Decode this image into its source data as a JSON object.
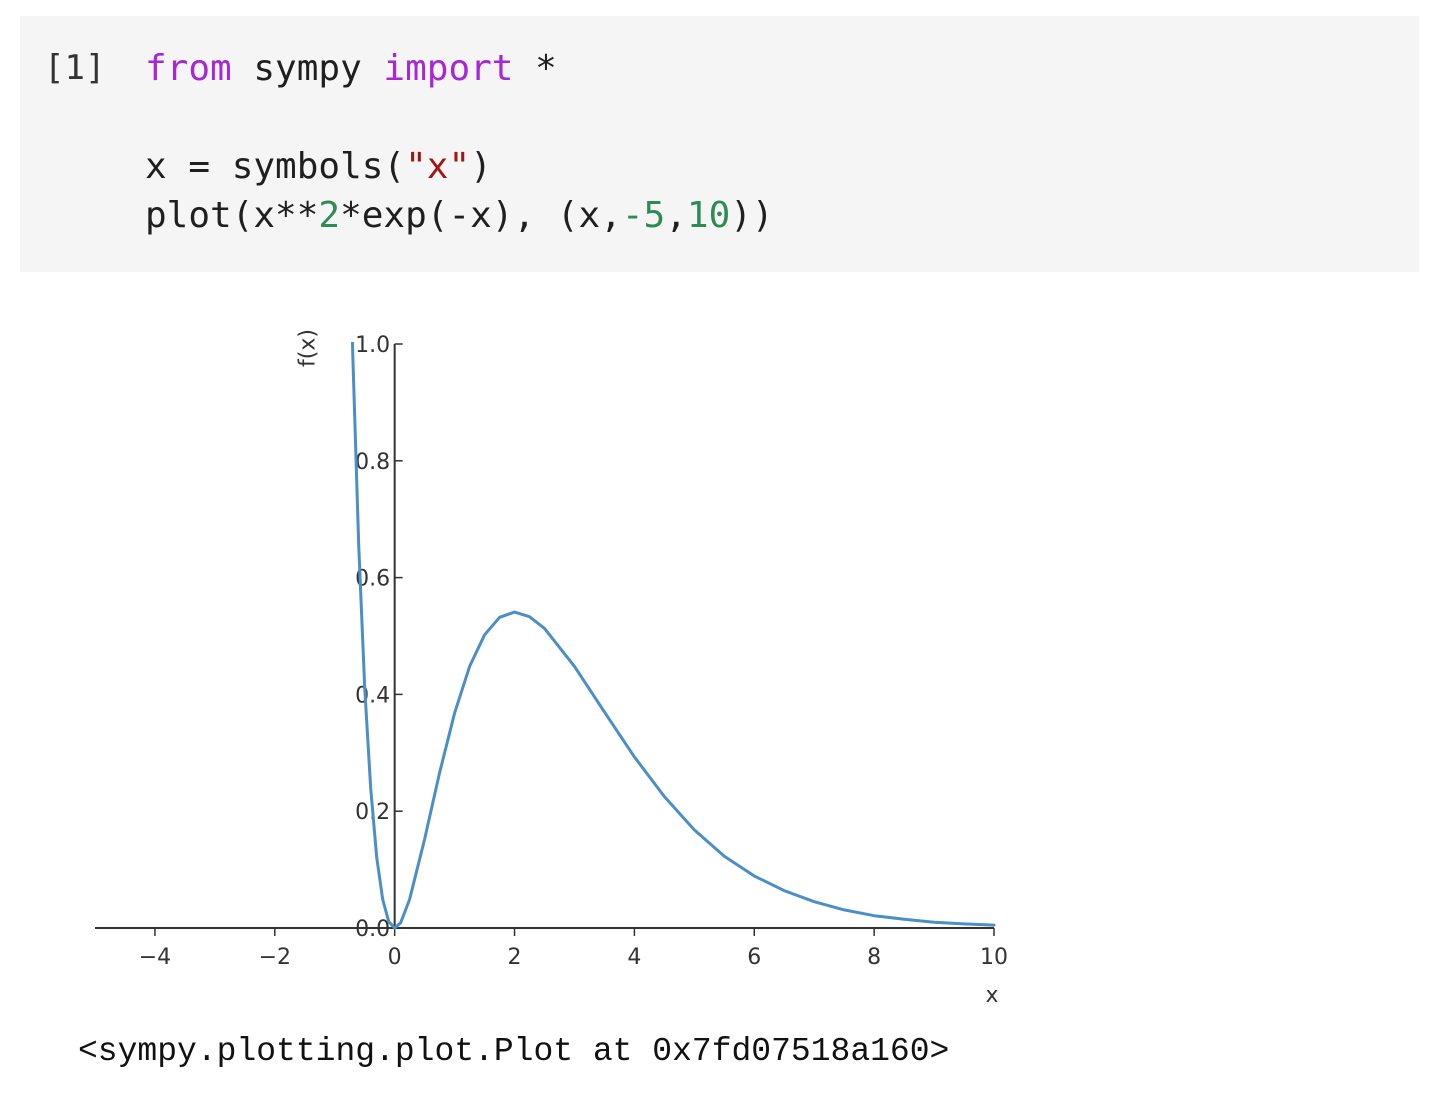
{
  "cell": {
    "prompt": "[1]",
    "code_lines": [
      [
        {
          "t": "from",
          "c": "kw"
        },
        {
          "t": " sympy ",
          "c": "op"
        },
        {
          "t": "import",
          "c": "kw"
        },
        {
          "t": " *",
          "c": "op"
        }
      ],
      [],
      [
        {
          "t": "x = symbols(",
          "c": "op"
        },
        {
          "t": "\"x\"",
          "c": "str"
        },
        {
          "t": ")",
          "c": "op"
        }
      ],
      [
        {
          "t": "plot(x**",
          "c": "op"
        },
        {
          "t": "2",
          "c": "num"
        },
        {
          "t": "*exp(-x), (x,",
          "c": "op"
        },
        {
          "t": "-5",
          "c": "num"
        },
        {
          "t": ",",
          "c": "op"
        },
        {
          "t": "10",
          "c": "num"
        },
        {
          "t": "))",
          "c": "op"
        }
      ]
    ]
  },
  "output": {
    "repr": "<sympy.plotting.plot.Plot at 0x7fd07518a160>"
  },
  "chart_data": {
    "type": "line",
    "title": "",
    "xlabel": "x",
    "ylabel": "f(x)",
    "xlim": [
      -5,
      10
    ],
    "ylim": [
      0,
      1.0
    ],
    "grid": false,
    "x_ticks": [
      -4,
      -2,
      0,
      2,
      4,
      6,
      8,
      10
    ],
    "x_tick_labels": [
      "−4",
      "−2",
      "0",
      "2",
      "4",
      "6",
      "8",
      "10"
    ],
    "y_ticks": [
      0.0,
      0.2,
      0.4,
      0.6,
      0.8,
      1.0
    ],
    "y_tick_labels": [
      "0.0",
      "0.2",
      "0.4",
      "0.6",
      "0.8",
      "1.0"
    ],
    "series": [
      {
        "expression": "x**2*exp(-x)",
        "color": "#4c8ec6",
        "x": [
          -0.75,
          -0.7,
          -0.6,
          -0.5,
          -0.4,
          -0.3,
          -0.2,
          -0.1,
          0,
          0.1,
          0.25,
          0.5,
          0.75,
          1.0,
          1.25,
          1.5,
          1.75,
          2.0,
          2.25,
          2.5,
          3.0,
          3.5,
          4.0,
          4.5,
          5.0,
          5.5,
          6.0,
          6.5,
          7.0,
          7.5,
          8.0,
          8.5,
          9.0,
          9.5,
          10.0
        ],
        "y": [
          1.191,
          0.986,
          0.656,
          0.412,
          0.239,
          0.121,
          0.049,
          0.011,
          0.0,
          0.009,
          0.049,
          0.152,
          0.266,
          0.368,
          0.448,
          0.502,
          0.532,
          0.541,
          0.533,
          0.513,
          0.448,
          0.37,
          0.293,
          0.225,
          0.168,
          0.123,
          0.089,
          0.064,
          0.045,
          0.031,
          0.021,
          0.015,
          0.01,
          0.007,
          0.005
        ]
      }
    ]
  }
}
